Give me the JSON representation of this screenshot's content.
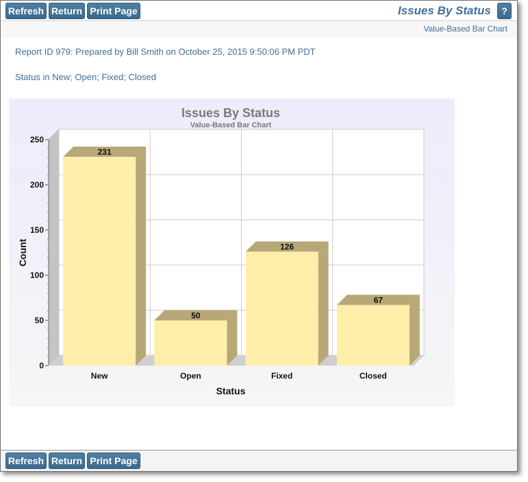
{
  "toolbar": {
    "refresh_label": "Refresh",
    "return_label": "Return",
    "print_label": "Print Page",
    "help_label": "?"
  },
  "header": {
    "title": "Issues By Status",
    "subtitle": "Value-Based Bar Chart"
  },
  "report": {
    "info": "Report ID 979: Prepared by Bill Smith on October 25, 2015 9:50:06 PM PDT",
    "filter": "Status in New; Open; Fixed; Closed"
  },
  "colors": {
    "accent": "#3f6f98",
    "bar_front": "#ffedaa",
    "bar_side": "#b8a878",
    "plot_bg": "#eeeefc"
  },
  "chart_data": {
    "type": "bar",
    "title": "Issues By Status",
    "subtitle": "Value-Based Bar Chart",
    "xlabel": "Status",
    "ylabel": "Count",
    "categories": [
      "New",
      "Open",
      "Fixed",
      "Closed"
    ],
    "values": [
      231,
      50,
      126,
      67
    ],
    "ylim": [
      0,
      250
    ],
    "yticks": [
      0,
      50,
      100,
      150,
      200,
      250
    ],
    "grid": true,
    "style": "3d"
  }
}
